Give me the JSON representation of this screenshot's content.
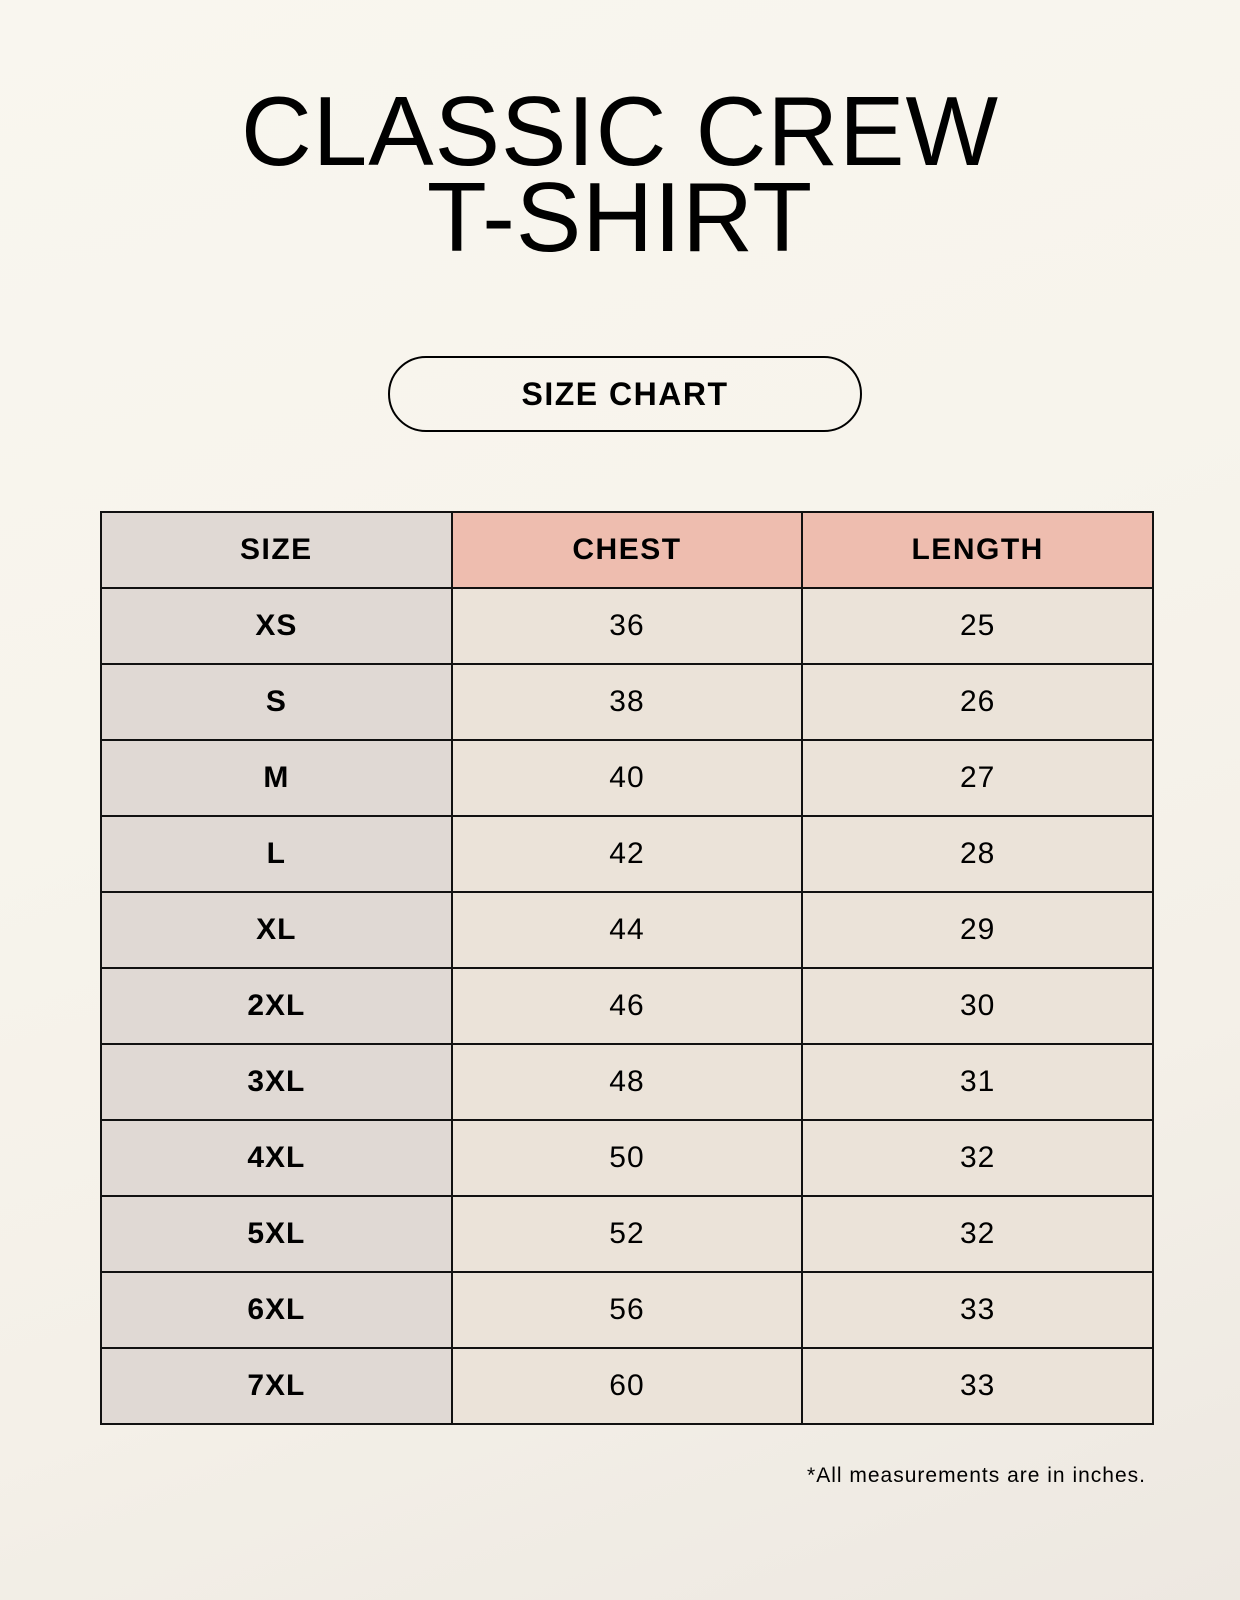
{
  "title": {
    "line1": "CLASSIC CREW",
    "line2": "T-SHIRT"
  },
  "badge": "SIZE CHART",
  "table": {
    "headers": [
      "SIZE",
      "CHEST",
      "LENGTH"
    ],
    "rows": [
      [
        "XS",
        "36",
        "25"
      ],
      [
        "S",
        "38",
        "26"
      ],
      [
        "M",
        "40",
        "27"
      ],
      [
        "L",
        "42",
        "28"
      ],
      [
        "XL",
        "44",
        "29"
      ],
      [
        "2XL",
        "46",
        "30"
      ],
      [
        "3XL",
        "48",
        "31"
      ],
      [
        "4XL",
        "50",
        "32"
      ],
      [
        "5XL",
        "52",
        "32"
      ],
      [
        "6XL",
        "56",
        "33"
      ],
      [
        "7XL",
        "60",
        "33"
      ]
    ]
  },
  "footnote": "*All measurements are in inches.",
  "colors": {
    "size_column": "#e0d9d4",
    "header_accent": "#eebdaf",
    "value_cells": "#ebe3d9",
    "background": "#f8f5ee"
  }
}
